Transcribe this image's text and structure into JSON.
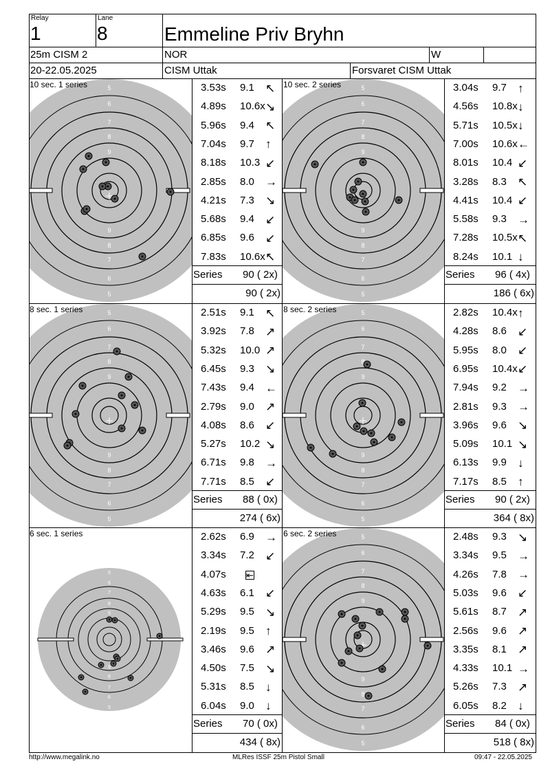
{
  "header": {
    "relay_label": "Relay",
    "relay_value": "1",
    "lane_label": "Lane",
    "lane_value": "8",
    "shooter_name": "Emmeline Priv Bryhn",
    "event": "25m CISM 2",
    "nation": "NOR",
    "gender": "W",
    "date": "20-22.05.2025",
    "competition": "CISM Uttak",
    "organizer": "Forsvaret CISM Uttak"
  },
  "series_label": "Series",
  "panels": [
    {
      "title": "10 sec. 1 series",
      "series_total": "90 ( 2x)",
      "running_total": "90 ( 2x)",
      "shots": [
        {
          "time": "3.53s",
          "score": "9.1",
          "dir": "↖"
        },
        {
          "time": "4.89s",
          "score": "10.6x",
          "dir": "↘"
        },
        {
          "time": "5.96s",
          "score": "9.4",
          "dir": "↖"
        },
        {
          "time": "7.04s",
          "score": "9.7",
          "dir": "↑"
        },
        {
          "time": "8.18s",
          "score": "10.3",
          "dir": "↙"
        },
        {
          "time": "2.85s",
          "score": "8.0",
          "dir": "→"
        },
        {
          "time": "4.21s",
          "score": "7.3",
          "dir": "↘"
        },
        {
          "time": "5.68s",
          "score": "9.4",
          "dir": "↙"
        },
        {
          "time": "6.85s",
          "score": "9.6",
          "dir": "↙"
        },
        {
          "time": "7.83s",
          "score": "10.6x",
          "dir": "↖"
        }
      ]
    },
    {
      "title": "10 sec. 2 series",
      "series_total": "96 ( 4x)",
      "running_total": "186 ( 6x)",
      "shots": [
        {
          "time": "3.04s",
          "score": "9.7",
          "dir": "↑"
        },
        {
          "time": "4.56s",
          "score": "10.8x",
          "dir": "↓"
        },
        {
          "time": "5.71s",
          "score": "10.5x",
          "dir": "↓"
        },
        {
          "time": "7.00s",
          "score": "10.6x",
          "dir": "←"
        },
        {
          "time": "8.01s",
          "score": "10.4",
          "dir": "↙"
        },
        {
          "time": "3.28s",
          "score": "8.3",
          "dir": "↖"
        },
        {
          "time": "4.41s",
          "score": "10.4",
          "dir": "↙"
        },
        {
          "time": "5.58s",
          "score": "9.3",
          "dir": "→"
        },
        {
          "time": "7.28s",
          "score": "10.5x",
          "dir": "↖"
        },
        {
          "time": "8.24s",
          "score": "10.1",
          "dir": "↓"
        }
      ]
    },
    {
      "title": "8 sec. 1 series",
      "series_total": "88 ( 0x)",
      "running_total": "274 ( 6x)",
      "shots": [
        {
          "time": "2.51s",
          "score": "9.1",
          "dir": "↖"
        },
        {
          "time": "3.92s",
          "score": "7.8",
          "dir": "↗"
        },
        {
          "time": "5.32s",
          "score": "10.0",
          "dir": "↗"
        },
        {
          "time": "6.45s",
          "score": "9.3",
          "dir": "↘"
        },
        {
          "time": "7.43s",
          "score": "9.4",
          "dir": "←"
        },
        {
          "time": "2.79s",
          "score": "9.0",
          "dir": "↗"
        },
        {
          "time": "4.08s",
          "score": "8.6",
          "dir": "↙"
        },
        {
          "time": "5.27s",
          "score": "10.2",
          "dir": "↘"
        },
        {
          "time": "6.71s",
          "score": "9.8",
          "dir": "→"
        },
        {
          "time": "7.71s",
          "score": "8.5",
          "dir": "↙"
        }
      ]
    },
    {
      "title": "8 sec. 2 series",
      "series_total": "90 ( 2x)",
      "running_total": "364 ( 8x)",
      "shots": [
        {
          "time": "2.82s",
          "score": "10.4x",
          "dir": "↑"
        },
        {
          "time": "4.28s",
          "score": "8.6",
          "dir": "↙"
        },
        {
          "time": "5.95s",
          "score": "8.0",
          "dir": "↙"
        },
        {
          "time": "6.95s",
          "score": "10.4x",
          "dir": "↙"
        },
        {
          "time": "7.94s",
          "score": "9.2",
          "dir": "→"
        },
        {
          "time": "2.81s",
          "score": "9.3",
          "dir": "→"
        },
        {
          "time": "3.96s",
          "score": "9.6",
          "dir": "↘"
        },
        {
          "time": "5.09s",
          "score": "10.1",
          "dir": "↘"
        },
        {
          "time": "6.13s",
          "score": "9.9",
          "dir": "↓"
        },
        {
          "time": "7.17s",
          "score": "8.5",
          "dir": "↑"
        }
      ]
    },
    {
      "title": "6 sec. 1 series",
      "series_total": "70 ( 0x)",
      "running_total": "434 ( 8x)",
      "shots": [
        {
          "time": "2.62s",
          "score": "6.9",
          "dir": "→"
        },
        {
          "time": "3.34s",
          "score": "7.2",
          "dir": "↙"
        },
        {
          "time": "4.07s",
          "score": "",
          "dir": "⇤"
        },
        {
          "time": "4.63s",
          "score": "6.1",
          "dir": "↙"
        },
        {
          "time": "5.29s",
          "score": "9.5",
          "dir": "↘"
        },
        {
          "time": "2.19s",
          "score": "9.5",
          "dir": "↑"
        },
        {
          "time": "3.46s",
          "score": "9.6",
          "dir": "↗"
        },
        {
          "time": "4.50s",
          "score": "7.5",
          "dir": "↘"
        },
        {
          "time": "5.31s",
          "score": "8.5",
          "dir": "↓"
        },
        {
          "time": "6.04s",
          "score": "9.0",
          "dir": "↓"
        }
      ]
    },
    {
      "title": "6 sec. 2 series",
      "series_total": "84 ( 0x)",
      "running_total": "518 ( 8x)",
      "shots": [
        {
          "time": "2.48s",
          "score": "9.3",
          "dir": "↘"
        },
        {
          "time": "3.34s",
          "score": "9.5",
          "dir": "→"
        },
        {
          "time": "4.26s",
          "score": "7.8",
          "dir": "→"
        },
        {
          "time": "5.03s",
          "score": "9.6",
          "dir": "↙"
        },
        {
          "time": "5.61s",
          "score": "8.7",
          "dir": "↗"
        },
        {
          "time": "2.56s",
          "score": "9.6",
          "dir": "↗"
        },
        {
          "time": "3.35s",
          "score": "8.1",
          "dir": "↗"
        },
        {
          "time": "4.33s",
          "score": "10.1",
          "dir": "→"
        },
        {
          "time": "5.26s",
          "score": "7.3",
          "dir": "↗"
        },
        {
          "time": "6.05s",
          "score": "8.2",
          "dir": "↓"
        }
      ]
    }
  ],
  "ring_labels": [
    "5",
    "6",
    "7",
    "8",
    "9"
  ],
  "footer": {
    "left": "http://www.megalink.no",
    "center": "MLRes ISSF 25m Pistol Small",
    "right": "09:47 - 22.05.2025"
  },
  "colors": {
    "target_gray": "#c0c0c0",
    "ink": "#000000"
  }
}
